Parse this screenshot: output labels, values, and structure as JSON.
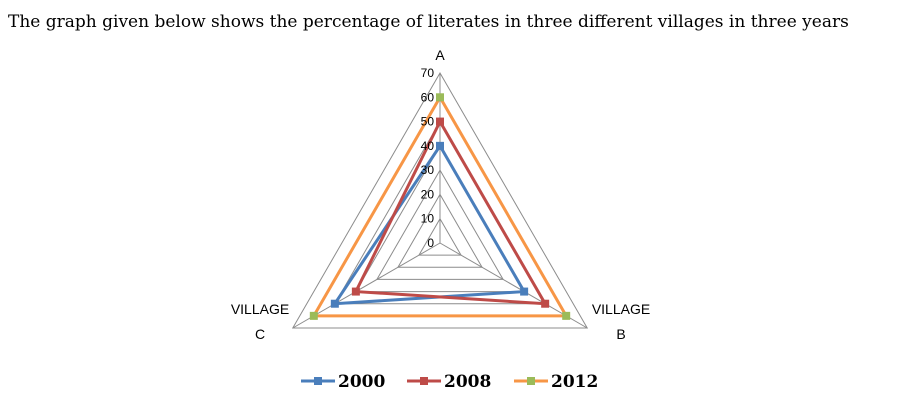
{
  "title": "The graph given below shows the percentage of literates in three different villages in three years",
  "chart_data": {
    "type": "radar",
    "categories": [
      {
        "line1": "A",
        "line2": ""
      },
      {
        "line1": "VILLAGE",
        "line2": "B"
      },
      {
        "line1": "VILLAGE",
        "line2": "C"
      }
    ],
    "rmax": 70,
    "ticks": [
      "0",
      "10",
      "20",
      "30",
      "40",
      "50",
      "60",
      "70"
    ],
    "grid": true,
    "legend_position": "bottom",
    "series": [
      {
        "name": "2000",
        "color": "#4a7ebb",
        "values": [
          40,
          40,
          50
        ]
      },
      {
        "name": "2008",
        "color": "#be4b48",
        "values": [
          50,
          50,
          40
        ]
      },
      {
        "name": "2012",
        "color": "#f79646",
        "values": [
          60,
          60,
          60
        ]
      }
    ],
    "marker_colors": [
      "#4a7ebb",
      "#be4b48",
      "#9bbb59"
    ]
  }
}
